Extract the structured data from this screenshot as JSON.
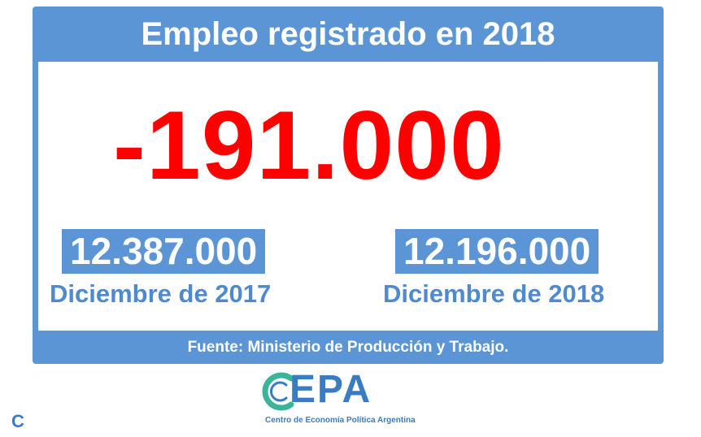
{
  "title": "Empleo registrado en 2018",
  "headline_value": "-191.000",
  "stats": [
    {
      "value": "12.387.000",
      "label": "Diciembre de 2017"
    },
    {
      "value": "12.196.000",
      "label": "Diciembre de 2018"
    }
  ],
  "footer": "Fuente: Ministerio de Producción y Trabajo.",
  "logo": {
    "word_rest": "EPA",
    "subtitle": "Centro de Economía Política Argentina"
  },
  "corner_letter": "C",
  "colors": {
    "frame": "#5b95d6",
    "headline": "#ff0000",
    "label": "#4f8ad0",
    "logo_blue": "#3a7cc4",
    "logo_green": "#3bb59a"
  }
}
